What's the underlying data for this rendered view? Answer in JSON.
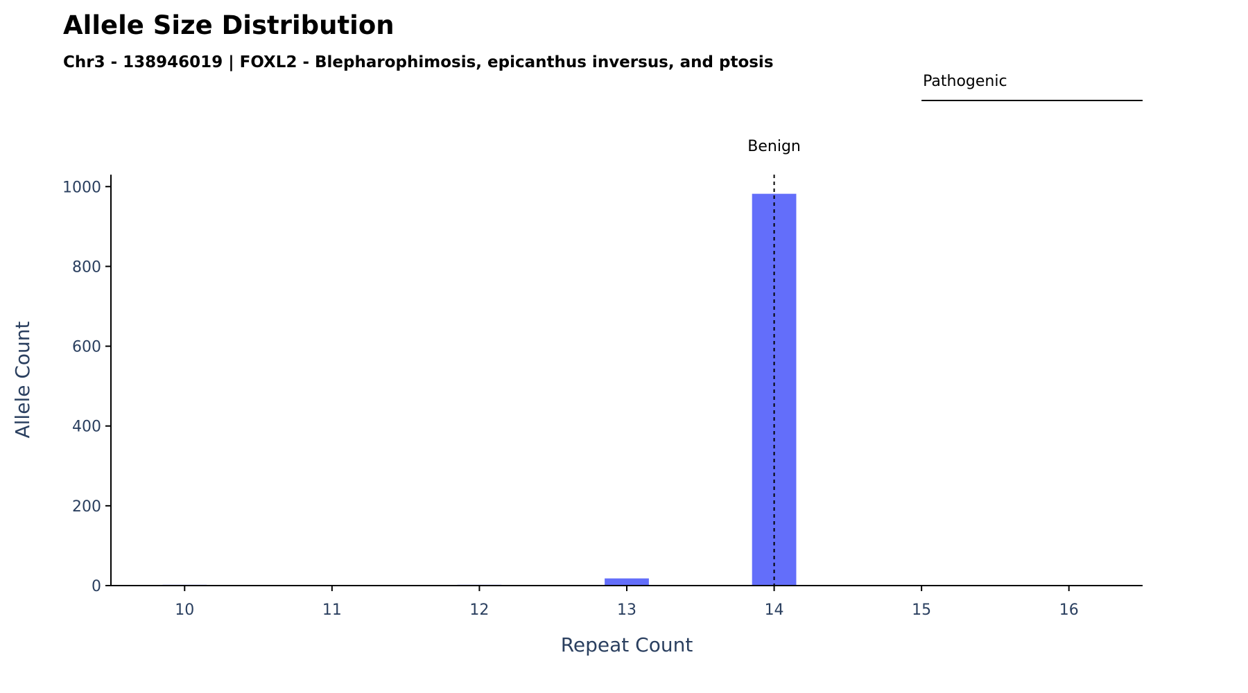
{
  "chart_data": {
    "type": "bar",
    "title": "Allele Size Distribution",
    "subtitle": "Chr3 - 138946019 | FOXL2 - Blepharophimosis, epicanthus inversus, and ptosis",
    "xlabel": "Repeat Count",
    "ylabel": "Allele Count",
    "x_ticks": [
      10,
      11,
      12,
      13,
      14,
      15,
      16
    ],
    "y_ticks": [
      0,
      200,
      400,
      600,
      800,
      1000
    ],
    "xlim": [
      9.5,
      16.5
    ],
    "ylim": [
      0,
      1030
    ],
    "bar_width": 0.3,
    "bar_color": "#636efa",
    "grid": false,
    "bars": [
      {
        "x": 10,
        "value": 2
      },
      {
        "x": 11,
        "value": 0
      },
      {
        "x": 12,
        "value": 2
      },
      {
        "x": 13,
        "value": 18
      },
      {
        "x": 14,
        "value": 982
      },
      {
        "x": 15,
        "value": 0
      },
      {
        "x": 16,
        "value": 0
      }
    ],
    "annotations": {
      "benign": {
        "label": "Benign",
        "x": 14,
        "style": "dashed"
      },
      "pathogenic": {
        "label": "Pathogenic",
        "x_start": 15,
        "x_end": 16.5
      }
    }
  }
}
